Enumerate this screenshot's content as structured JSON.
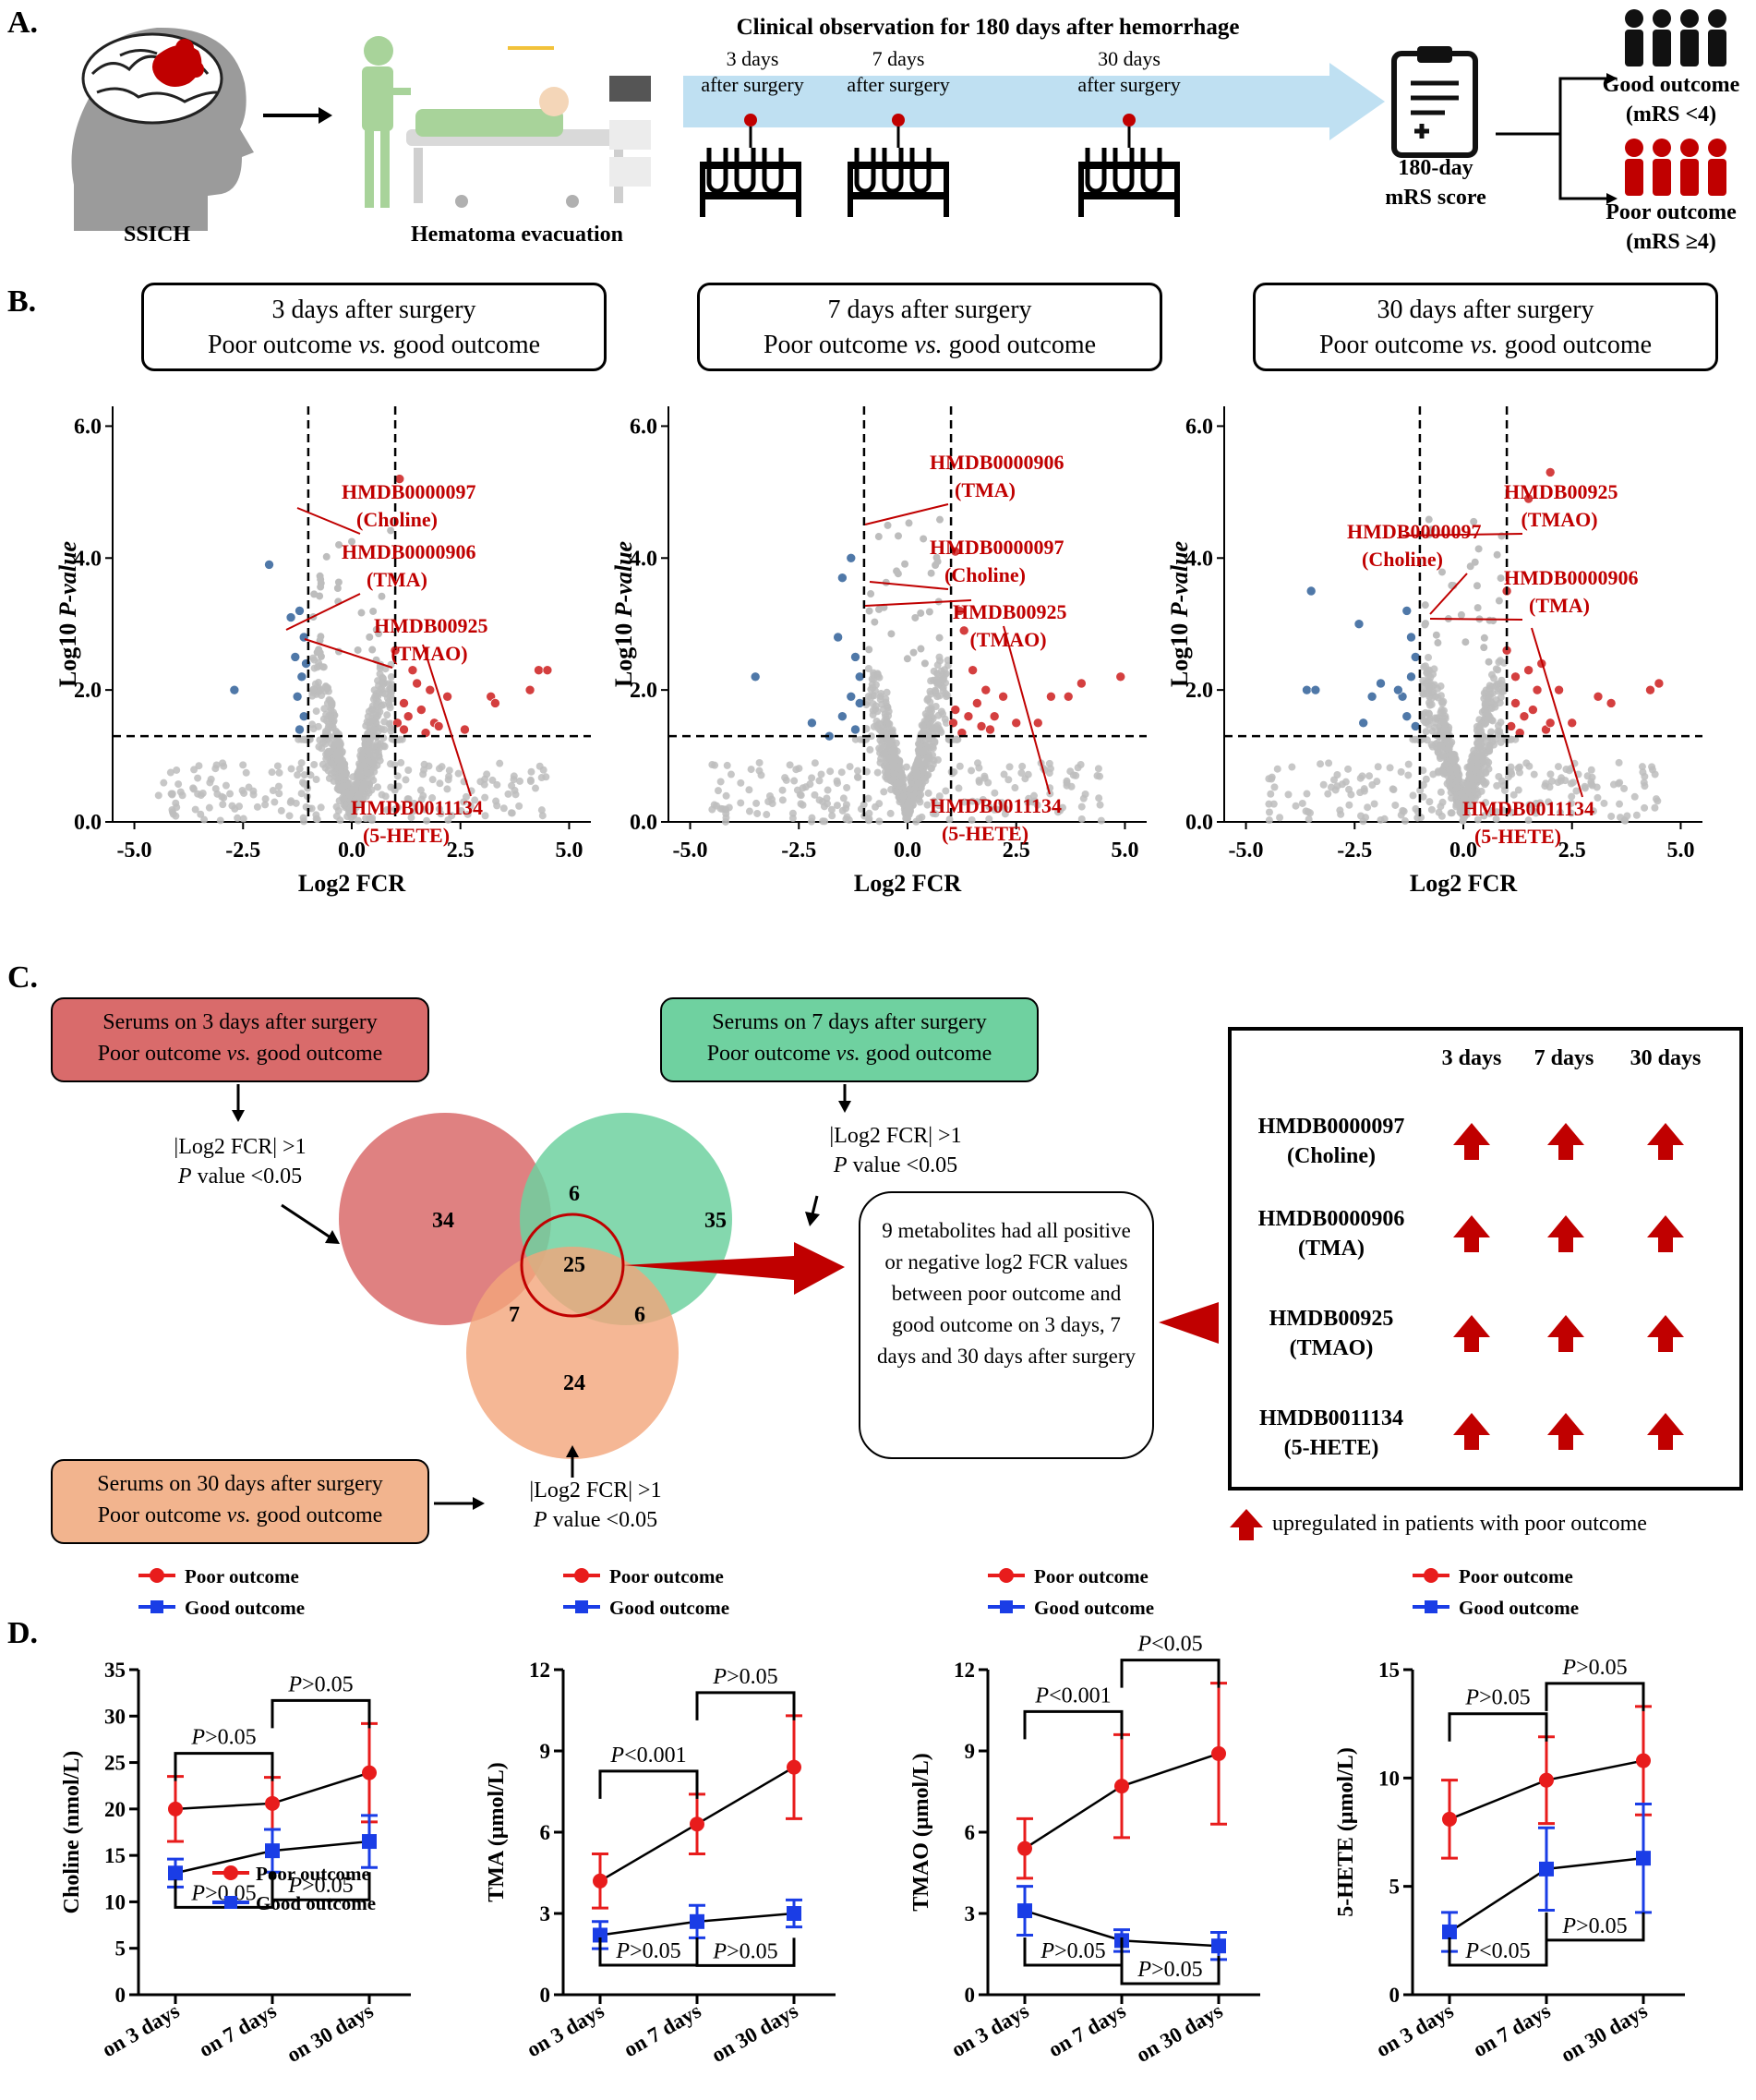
{
  "panels": {
    "a": "A.",
    "b": "B.",
    "c": "C.",
    "d": "D."
  },
  "panel_a": {
    "ssich": "SSICH",
    "hematoma": "Hematoma evacuation",
    "observation": "Clinical observation  for 180 days after hemorrhage",
    "timepoints": [
      {
        "l1": "3 days",
        "l2": "after surgery"
      },
      {
        "l1": "7 days",
        "l2": "after surgery"
      },
      {
        "l1": "30 days",
        "l2": "after surgery"
      }
    ],
    "mrs_l1": "180-day",
    "mrs_l2": "mRS score",
    "good_l1": "Good outcome",
    "good_l2": "(mRS <4)",
    "poor_l1": "Poor outcome",
    "poor_l2": "(mRS ≥4)",
    "colors": {
      "arrow": "#bfe0f2",
      "red": "#c00000",
      "black": "#111111"
    }
  },
  "panel_b": {
    "titles": [
      {
        "l1": "3 days after surgery",
        "l2a": "Poor outcome ",
        "l2b": "vs.",
        "l2c": " good outcome"
      },
      {
        "l1": "7 days after surgery",
        "l2a": "Poor outcome ",
        "l2b": "vs.",
        "l2c": " good outcome"
      },
      {
        "l1": "30 days after surgery",
        "l2a": "Poor outcome ",
        "l2b": "vs.",
        "l2c": " good outcome"
      }
    ]
  },
  "chart_data": [
    {
      "type": "scatter",
      "title": "3 days after surgery - Poor outcome vs. good outcome",
      "xlabel": "Log2 FCR",
      "ylabel": "Log10 P-value",
      "xlim": [
        -5.5,
        5.5
      ],
      "ylim": [
        0,
        6.3
      ],
      "xticks": [
        "-5.0",
        "-2.5",
        "0.0",
        "2.5",
        "5.0"
      ],
      "yticks": [
        "0.0",
        "2.0",
        "4.0",
        "6.0"
      ],
      "thresholds": {
        "x": [
          -1,
          1
        ],
        "y": 1.3
      },
      "series": [
        {
          "name": "up",
          "color": "#d43f3f",
          "points": [
            [
              1.1,
              5.2
            ],
            [
              1.0,
              2.6
            ],
            [
              1.4,
              2.3
            ],
            [
              1.5,
              2.1
            ],
            [
              1.8,
              2.0
            ],
            [
              2.2,
              1.9
            ],
            [
              3.2,
              1.9
            ],
            [
              3.3,
              1.8
            ],
            [
              4.3,
              2.3
            ],
            [
              4.5,
              2.3
            ],
            [
              4.1,
              2.0
            ],
            [
              1.2,
              1.8
            ],
            [
              1.3,
              1.6
            ],
            [
              1.6,
              1.7
            ],
            [
              2.6,
              1.4
            ],
            [
              1.9,
              1.5
            ],
            [
              1.05,
              1.5
            ],
            [
              1.2,
              1.4
            ],
            [
              2.0,
              1.45
            ],
            [
              1.7,
              1.35
            ]
          ]
        },
        {
          "name": "down",
          "color": "#4f78a8",
          "points": [
            [
              -1.9,
              3.9
            ],
            [
              -2.7,
              2.0
            ],
            [
              -1.2,
              3.2
            ],
            [
              -1.1,
              2.8
            ],
            [
              -1.3,
              2.5
            ],
            [
              -1.15,
              2.2
            ],
            [
              -1.25,
              1.9
            ],
            [
              -1.1,
              1.6
            ],
            [
              -1.2,
              1.4
            ],
            [
              -1.4,
              3.1
            ],
            [
              -1.05,
              2.4
            ]
          ]
        }
      ],
      "labels": [
        {
          "id": "HMDB0000097",
          "name": "(Choline)"
        },
        {
          "id": "HMDB0000906",
          "name": "(TMA)"
        },
        {
          "id": "HMDB00925",
          "name": "(TMAO)"
        },
        {
          "id": "HMDB0011134",
          "name": "(5-HETE)"
        }
      ]
    },
    {
      "type": "scatter",
      "title": "7 days after surgery - Poor outcome vs. good outcome",
      "xlabel": "Log2 FCR",
      "ylabel": "Log10 P-value",
      "xlim": [
        -5.5,
        5.5
      ],
      "ylim": [
        0,
        6.3
      ],
      "xticks": [
        "-5.0",
        "-2.5",
        "0.0",
        "2.5",
        "5.0"
      ],
      "yticks": [
        "0.0",
        "2.0",
        "4.0",
        "6.0"
      ],
      "thresholds": {
        "x": [
          -1,
          1
        ],
        "y": 1.3
      },
      "series": [
        {
          "name": "up",
          "color": "#d43f3f",
          "points": [
            [
              1.1,
              4.1
            ],
            [
              1.2,
              3.2
            ],
            [
              1.3,
              2.9
            ],
            [
              1.5,
              2.3
            ],
            [
              1.8,
              2.0
            ],
            [
              2.2,
              1.9
            ],
            [
              3.3,
              1.9
            ],
            [
              3.7,
              1.9
            ],
            [
              4.0,
              2.1
            ],
            [
              4.9,
              2.2
            ],
            [
              1.1,
              1.7
            ],
            [
              1.4,
              1.6
            ],
            [
              1.6,
              1.8
            ],
            [
              2.5,
              1.5
            ],
            [
              1.9,
              1.4
            ],
            [
              1.05,
              1.5
            ],
            [
              1.25,
              1.35
            ],
            [
              2.0,
              1.6
            ],
            [
              1.7,
              1.45
            ],
            [
              3.0,
              1.5
            ]
          ]
        },
        {
          "name": "down",
          "color": "#4f78a8",
          "points": [
            [
              -1.3,
              4.0
            ],
            [
              -1.5,
              3.7
            ],
            [
              -1.6,
              2.8
            ],
            [
              -1.2,
              2.5
            ],
            [
              -1.1,
              2.2
            ],
            [
              -1.3,
              1.9
            ],
            [
              -1.5,
              1.6
            ],
            [
              -2.2,
              1.5
            ],
            [
              -3.5,
              2.2
            ],
            [
              -1.1,
              1.8
            ],
            [
              -1.2,
              1.4
            ],
            [
              -1.8,
              1.3
            ]
          ]
        }
      ],
      "labels": [
        {
          "id": "HMDB0000906",
          "name": "(TMA)"
        },
        {
          "id": "HMDB0000097",
          "name": "(Choline)"
        },
        {
          "id": "HMDB00925",
          "name": "(TMAO)"
        },
        {
          "id": "HMDB0011134",
          "name": "(5-HETE)"
        }
      ]
    },
    {
      "type": "scatter",
      "title": "30 days after surgery - Poor outcome vs. good outcome",
      "xlabel": "Log2 FCR",
      "ylabel": "Log10 P-value",
      "xlim": [
        -5.5,
        5.5
      ],
      "ylim": [
        0,
        6.3
      ],
      "xticks": [
        "-5.0",
        "-2.5",
        "0.0",
        "2.5",
        "5.0"
      ],
      "yticks": [
        "0.0",
        "2.0",
        "4.0",
        "6.0"
      ],
      "thresholds": {
        "x": [
          -1,
          1
        ],
        "y": 1.3
      },
      "series": [
        {
          "name": "up",
          "color": "#d43f3f",
          "points": [
            [
              2.0,
              5.3
            ],
            [
              1.5,
              4.9
            ],
            [
              1.0,
              3.5
            ],
            [
              1.0,
              2.6
            ],
            [
              1.5,
              2.3
            ],
            [
              1.8,
              2.4
            ],
            [
              2.2,
              2.0
            ],
            [
              3.1,
              1.9
            ],
            [
              3.4,
              1.8
            ],
            [
              4.5,
              2.1
            ],
            [
              4.3,
              2.0
            ],
            [
              1.2,
              1.8
            ],
            [
              1.4,
              1.6
            ],
            [
              1.6,
              1.7
            ],
            [
              2.5,
              1.5
            ],
            [
              1.9,
              1.4
            ],
            [
              1.1,
              1.45
            ],
            [
              1.3,
              1.35
            ],
            [
              2.0,
              1.5
            ],
            [
              1.7,
              2.0
            ],
            [
              1.2,
              2.2
            ]
          ]
        },
        {
          "name": "down",
          "color": "#4f78a8",
          "points": [
            [
              -3.5,
              3.5
            ],
            [
              -3.6,
              2.0
            ],
            [
              -3.4,
              2.0
            ],
            [
              -2.4,
              3.0
            ],
            [
              -1.3,
              3.2
            ],
            [
              -1.2,
              2.8
            ],
            [
              -1.1,
              2.5
            ],
            [
              -1.2,
              2.2
            ],
            [
              -1.4,
              1.9
            ],
            [
              -1.3,
              1.6
            ],
            [
              -2.1,
              1.9
            ],
            [
              -1.9,
              2.1
            ],
            [
              -1.1,
              1.45
            ],
            [
              -2.3,
              1.5
            ],
            [
              -1.5,
              2.0
            ]
          ]
        }
      ],
      "labels": [
        {
          "id": "HMDB00925",
          "name": "(TMAO)"
        },
        {
          "id": "HMDB0000097",
          "name": "(Choline)"
        },
        {
          "id": "HMDB0000906",
          "name": "(TMA)"
        },
        {
          "id": "HMDB0011134",
          "name": "(5-HETE)"
        }
      ]
    },
    {
      "type": "line",
      "ylabel": "Choline (nmol/L)",
      "categories": [
        "on 3 days",
        "on 7 days",
        "on 30 days"
      ],
      "ylim": [
        0,
        35
      ],
      "yticks": [
        0,
        5,
        10,
        15,
        20,
        25,
        30,
        35
      ],
      "series": [
        {
          "name": "Poor outcome",
          "color": "#e81c1c",
          "marker": "circle",
          "values": [
            20.0,
            20.6,
            23.9
          ],
          "errors": [
            3.5,
            2.8,
            5.3
          ]
        },
        {
          "name": "Good outcome",
          "color": "#1a3de6",
          "marker": "square",
          "values": [
            13.1,
            15.5,
            16.5
          ],
          "errors": [
            1.5,
            2.3,
            2.8
          ]
        }
      ],
      "legend": {
        "poor": "Poor outcome",
        "good": "Good outcome"
      },
      "stats": {
        "top": [
          "P>0.05",
          "P>0.05"
        ],
        "bottom": [
          "P>0.05",
          "P>0.05"
        ]
      }
    },
    {
      "type": "line",
      "ylabel": "TMA (μmol/L)",
      "categories": [
        "on 3 days",
        "on 7 days",
        "on 30 days"
      ],
      "ylim": [
        0,
        12
      ],
      "yticks": [
        0,
        3,
        6,
        9,
        12
      ],
      "series": [
        {
          "name": "Poor outcome",
          "color": "#e81c1c",
          "marker": "circle",
          "values": [
            4.2,
            6.3,
            8.4
          ],
          "errors": [
            1.0,
            1.1,
            1.9
          ]
        },
        {
          "name": "Good outcome",
          "color": "#1a3de6",
          "marker": "square",
          "values": [
            2.2,
            2.7,
            3.0
          ],
          "errors": [
            0.5,
            0.6,
            0.5
          ]
        }
      ],
      "stats": {
        "top": [
          "P<0.001",
          "P>0.05"
        ],
        "bottom": [
          "P>0.05",
          "P>0.05"
        ]
      }
    },
    {
      "type": "line",
      "ylabel": "TMAO (μmol/L)",
      "categories": [
        "on 3 days",
        "on 7 days",
        "on 30 days"
      ],
      "ylim": [
        0,
        12
      ],
      "yticks": [
        0,
        3,
        6,
        9,
        12
      ],
      "series": [
        {
          "name": "Poor outcome",
          "color": "#e81c1c",
          "marker": "circle",
          "values": [
            5.4,
            7.7,
            8.9
          ],
          "errors": [
            1.1,
            1.9,
            2.6
          ]
        },
        {
          "name": "Good outcome",
          "color": "#1a3de6",
          "marker": "square",
          "values": [
            3.1,
            2.0,
            1.8
          ],
          "errors": [
            0.9,
            0.4,
            0.5
          ]
        }
      ],
      "stats": {
        "top": [
          "P<0.001",
          "P<0.05"
        ],
        "bottom": [
          "P>0.05",
          "P>0.05"
        ]
      }
    },
    {
      "type": "line",
      "ylabel": "5-HETE (μmol/L)",
      "categories": [
        "on 3 days",
        "on 7 days",
        "on 30 days"
      ],
      "ylim": [
        0,
        15
      ],
      "yticks": [
        0,
        5,
        10,
        15
      ],
      "series": [
        {
          "name": "Poor outcome",
          "color": "#e81c1c",
          "marker": "circle",
          "values": [
            8.1,
            9.9,
            10.8
          ],
          "errors": [
            1.8,
            2.0,
            2.5
          ]
        },
        {
          "name": "Good outcome",
          "color": "#1a3de6",
          "marker": "square",
          "values": [
            2.9,
            5.8,
            6.3
          ],
          "errors": [
            0.9,
            1.9,
            2.5
          ]
        }
      ],
      "stats": {
        "top": [
          "P>0.05",
          "P>0.05"
        ],
        "bottom": [
          "P<0.05",
          "P>0.05"
        ]
      }
    }
  ],
  "panel_c": {
    "box3_l1": "Serums on 3 days after surgery",
    "box3_l2a": "Poor outcome ",
    "box3_l2b": "vs.",
    "box3_l2c": " good outcome",
    "box7_l1": "Serums on 7 days after surgery",
    "box7_l2a": "Poor outcome ",
    "box7_l2b": "vs.",
    "box7_l2c": " good outcome",
    "box30_l1": "Serums on 30 days after surgery",
    "box30_l2a": "Poor outcome ",
    "box30_l2b": "vs.",
    "box30_l2c": " good outcome",
    "crit_l1": "|Log2  FCR| >1",
    "crit_l2a": "P",
    "crit_l2b": " value <0.05",
    "venn": {
      "only3": "34",
      "only7": "35",
      "only30": "24",
      "i37": "6",
      "i330": "7",
      "i730": "6",
      "all": "25"
    },
    "summary": "9 metabolites had all positive or negative log2 FCR values between poor outcome and good outcome on 3 days, 7 days and 30 days after surgery",
    "table_headers": [
      "3 days",
      "7 days",
      "30 days"
    ],
    "table_rows": [
      {
        "id": "HMDB0000097",
        "name": "(Choline)"
      },
      {
        "id": "HMDB0000906",
        "name": "(TMA)"
      },
      {
        "id": "HMDB00925",
        "name": "(TMAO)"
      },
      {
        "id": "HMDB0011134",
        "name": "(5-HETE)"
      }
    ],
    "legend": "upregulated  in patients with poor outcome",
    "colors": {
      "red": "#d96b6b",
      "green": "#6fd1a0",
      "orange": "#f2a57a"
    }
  }
}
